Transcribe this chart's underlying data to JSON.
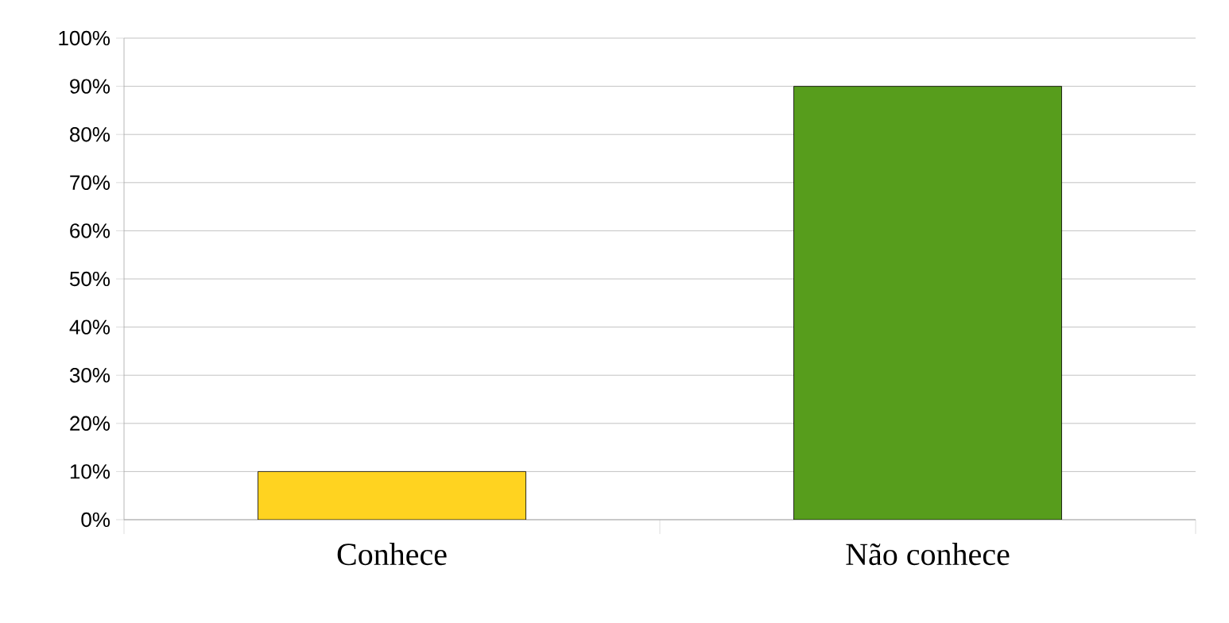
{
  "chart_data": {
    "type": "bar",
    "categories": [
      "Conhece",
      "Não conhece"
    ],
    "values": [
      10,
      90
    ],
    "colors": [
      "#ffd320",
      "#579d1c"
    ],
    "ylim": [
      0,
      100
    ],
    "yticks": [
      {
        "value": 0,
        "label": "0%"
      },
      {
        "value": 10,
        "label": "10%"
      },
      {
        "value": 20,
        "label": "20%"
      },
      {
        "value": 30,
        "label": "30%"
      },
      {
        "value": 40,
        "label": "40%"
      },
      {
        "value": 50,
        "label": "50%"
      },
      {
        "value": 60,
        "label": "60%"
      },
      {
        "value": 70,
        "label": "70%"
      },
      {
        "value": 80,
        "label": "80%"
      },
      {
        "value": 90,
        "label": "90%"
      },
      {
        "value": 100,
        "label": "100%"
      }
    ],
    "grid": "y"
  }
}
